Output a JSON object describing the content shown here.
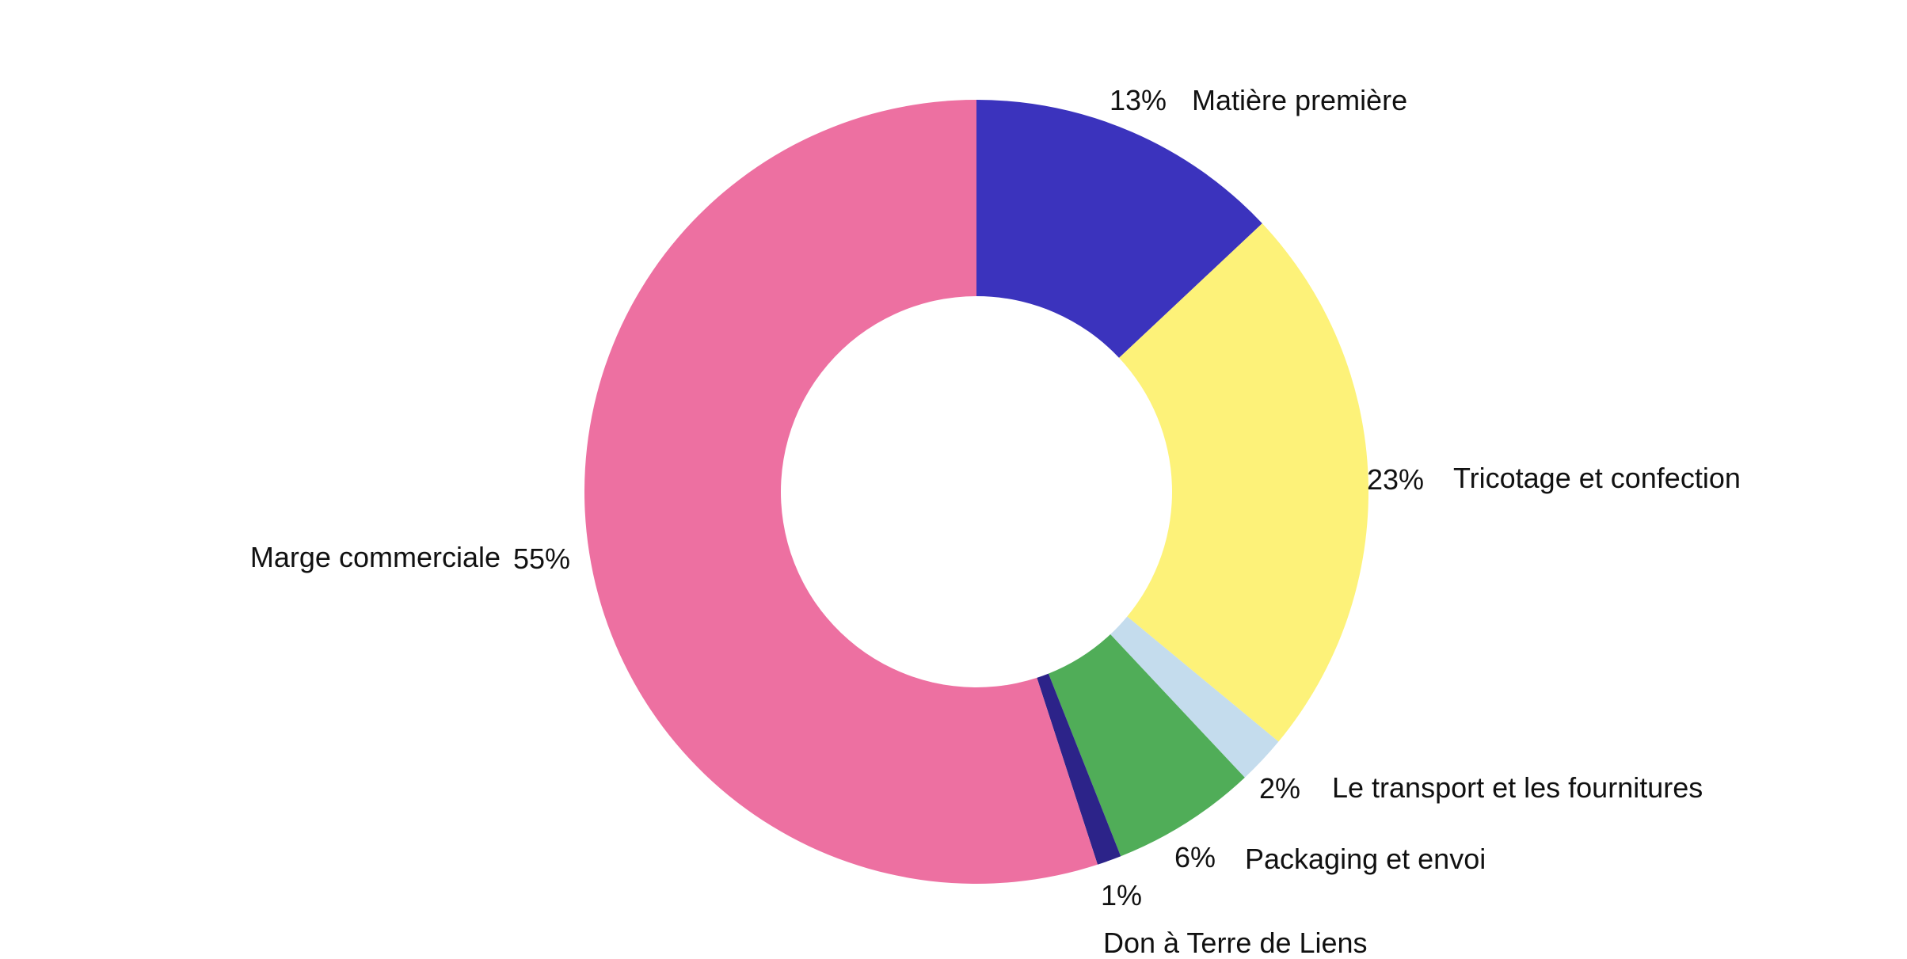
{
  "chart_data": {
    "type": "pie",
    "donut": true,
    "start": "top",
    "direction": "clockwise",
    "slices": [
      {
        "label": "Matière première",
        "value": 13,
        "value_text": "13%",
        "color": "#3b33bd"
      },
      {
        "label": "Tricotage et confection",
        "value": 23,
        "value_text": "23%",
        "color": "#fdf279"
      },
      {
        "label": "Le transport et les fournitures",
        "value": 2,
        "value_text": "2%",
        "color": "#c4dced"
      },
      {
        "label": "Packaging et envoi",
        "value": 6,
        "value_text": "6%",
        "color": "#50ad58"
      },
      {
        "label": "Don à Terre de Liens",
        "value": 1,
        "value_text": "1%",
        "color": "#2c2389"
      },
      {
        "label": "Marge commerciale",
        "value": 55,
        "value_text": "55%",
        "color": "#ed70a1"
      }
    ]
  }
}
